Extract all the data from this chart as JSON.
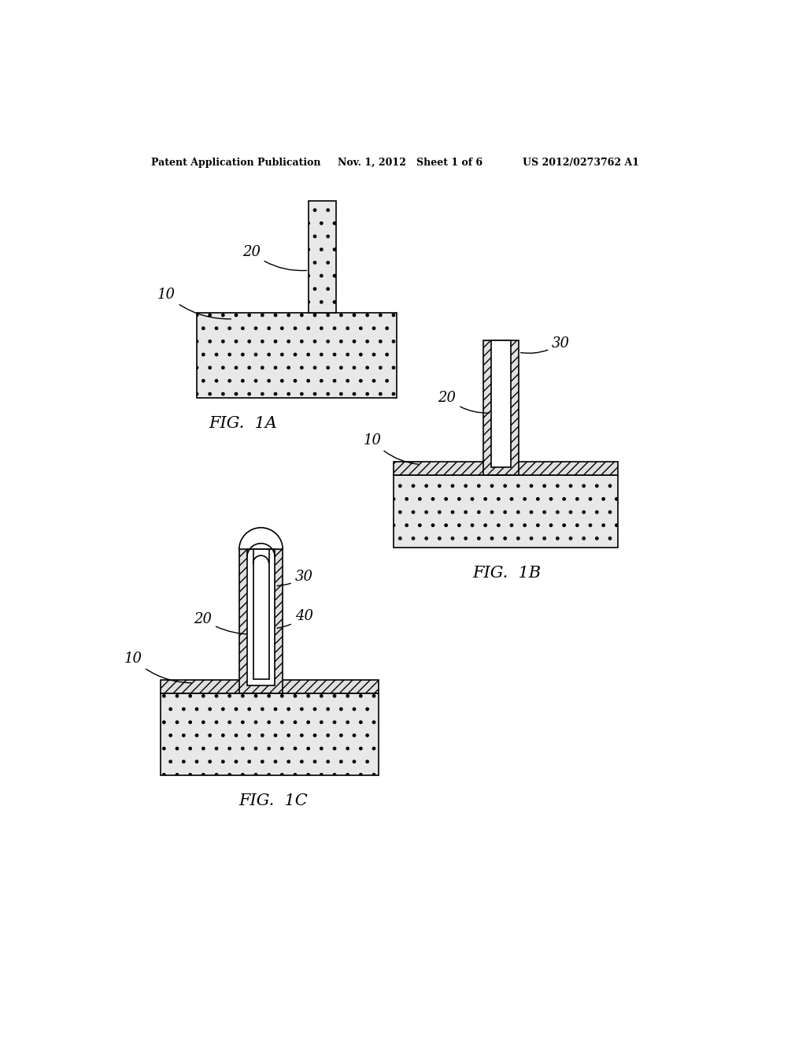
{
  "bg_color": "#ffffff",
  "header_left": "Patent Application Publication",
  "header_mid": "Nov. 1, 2012   Sheet 1 of 6",
  "header_right": "US 2012/0273762 A1",
  "fig1a_label": "FIG.  1A",
  "fig1b_label": "FIG.  1B",
  "fig1c_label": "FIG.  1C",
  "line_color": "#000000",
  "line_width": 1.2,
  "stipple_face": "#e8e8e8",
  "hatch_face": "#e0e0e0"
}
